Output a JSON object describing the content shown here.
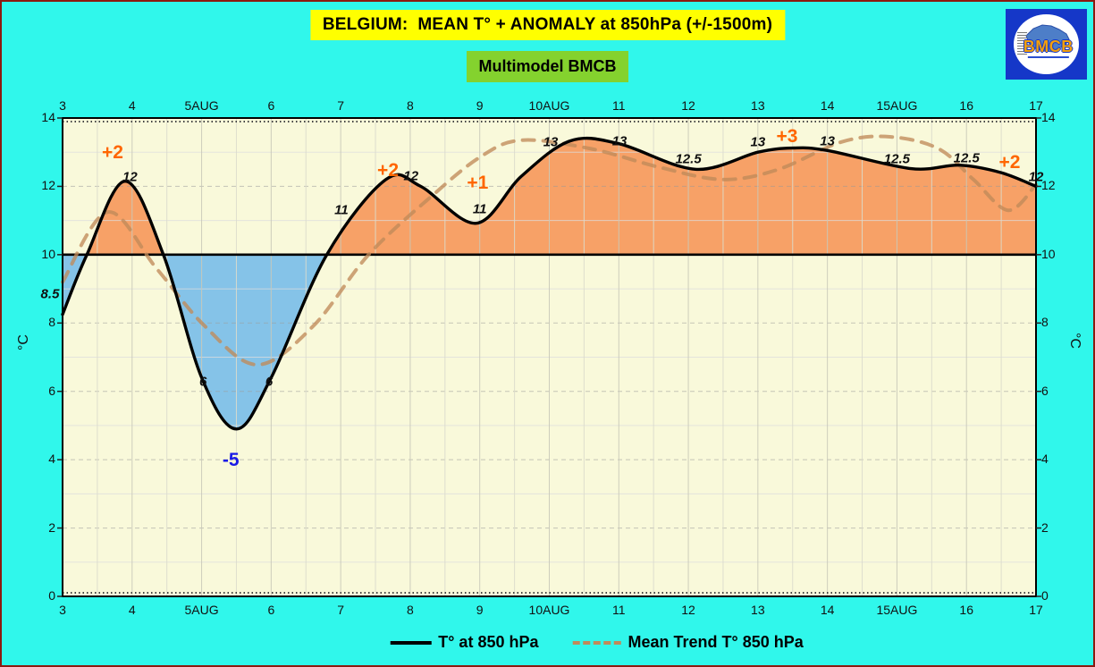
{
  "frame": {
    "title": "BELGIUM:  MEAN T° + ANOMALY at 850hPa (+/-1500m)",
    "subtitle": "Multimodel BMCB"
  },
  "logo": {
    "text": "BMCB"
  },
  "legend": {
    "items": [
      {
        "label": "T° at 850 hPa",
        "style": "solid"
      },
      {
        "label": "Mean Trend T° 850 hPa",
        "style": "dashed"
      }
    ]
  },
  "colors": {
    "background": "#30F7EB",
    "outer_border": "#8B1A10",
    "title_bg": "#FFFF00",
    "subtitle_bg": "#84D22E",
    "plot_bg": "#F9F9DA",
    "warm_fill": "#F7A167",
    "cold_fill": "#85C3E8",
    "temperature_line": "#000000",
    "trend_line": "#C08A5A",
    "baseline": "#000000",
    "anomaly_positive": "#FF6600",
    "anomaly_negative": "#1A1AE6",
    "logo_blue": "#1537C8"
  },
  "chart_data": {
    "type": "line",
    "title": "BELGIUM:  MEAN T° + ANOMALY at 850hPa (+/-1500m)",
    "subtitle": "Multimodel BMCB",
    "ylabel": "°C",
    "xlim": [
      3,
      17
    ],
    "ylim": [
      0,
      14
    ],
    "baseline": 10,
    "grid": true,
    "legend_position": "bottom",
    "x_ticks": [
      {
        "day": 3,
        "label": "3"
      },
      {
        "day": 4,
        "label": "4"
      },
      {
        "day": 5,
        "label": "5AUG"
      },
      {
        "day": 6,
        "label": "6"
      },
      {
        "day": 7,
        "label": "7"
      },
      {
        "day": 8,
        "label": "8"
      },
      {
        "day": 9,
        "label": "9"
      },
      {
        "day": 10,
        "label": "10AUG"
      },
      {
        "day": 11,
        "label": "11"
      },
      {
        "day": 12,
        "label": "12"
      },
      {
        "day": 13,
        "label": "13"
      },
      {
        "day": 14,
        "label": "14"
      },
      {
        "day": 15,
        "label": "15AUG"
      },
      {
        "day": 16,
        "label": "16"
      },
      {
        "day": 17,
        "label": "17"
      }
    ],
    "y_ticks": [
      0,
      2,
      4,
      6,
      8,
      10,
      12,
      14
    ],
    "categories": [
      3,
      4,
      5,
      6,
      7,
      8,
      9,
      10,
      11,
      12,
      13,
      14,
      15,
      16,
      17
    ],
    "series": [
      {
        "name": "T° at 850 hPa",
        "style": "solid",
        "values": [
          8.5,
          12,
          6,
          6,
          11,
          12,
          11,
          13,
          13,
          12.5,
          13,
          13,
          12.5,
          12.5,
          12
        ],
        "trace": [
          [
            3,
            8.25
          ],
          [
            3.35,
            10
          ],
          [
            3.9,
            12.15
          ],
          [
            4.45,
            10
          ],
          [
            5.0,
            6.4
          ],
          [
            5.5,
            4.9
          ],
          [
            6.0,
            6.4
          ],
          [
            6.8,
            10
          ],
          [
            7.65,
            12.2
          ],
          [
            8.15,
            12.0
          ],
          [
            8.95,
            10.92
          ],
          [
            9.6,
            12.3
          ],
          [
            10.3,
            13.33
          ],
          [
            11.0,
            13.25
          ],
          [
            12.1,
            12.5
          ],
          [
            13.0,
            13.0
          ],
          [
            13.5,
            13.12
          ],
          [
            14.0,
            13.05
          ],
          [
            15.2,
            12.52
          ],
          [
            15.9,
            12.62
          ],
          [
            16.5,
            12.4
          ],
          [
            17,
            12.0
          ]
        ]
      },
      {
        "name": "Mean Trend T° 850 hPa",
        "style": "dashed",
        "trace": [
          [
            3,
            9.2
          ],
          [
            3.65,
            11.25
          ],
          [
            4.35,
            9.6
          ],
          [
            5.05,
            7.9
          ],
          [
            5.8,
            6.78
          ],
          [
            6.6,
            7.9
          ],
          [
            7.4,
            10.0
          ],
          [
            8.3,
            11.7
          ],
          [
            9.0,
            12.85
          ],
          [
            9.6,
            13.35
          ],
          [
            10.6,
            13.1
          ],
          [
            11.6,
            12.55
          ],
          [
            12.5,
            12.2
          ],
          [
            13.3,
            12.5
          ],
          [
            14.2,
            13.3
          ],
          [
            14.9,
            13.45
          ],
          [
            15.6,
            13.1
          ],
          [
            16.1,
            12.2
          ],
          [
            16.6,
            11.3
          ],
          [
            17,
            12.05
          ]
        ]
      }
    ],
    "point_labels": [
      {
        "text": "8.5",
        "day": 2.82,
        "value": 8.85
      },
      {
        "text": "12",
        "day": 3.97,
        "value": 12.27
      },
      {
        "text": "6",
        "day": 5.02,
        "value": 6.28
      },
      {
        "text": "6",
        "day": 5.97,
        "value": 6.28
      },
      {
        "text": "11",
        "day": 7.01,
        "value": 11.31
      },
      {
        "text": "12",
        "day": 8.01,
        "value": 12.3
      },
      {
        "text": "11",
        "day": 9.0,
        "value": 11.33
      },
      {
        "text": "13",
        "day": 10.02,
        "value": 13.3
      },
      {
        "text": "13",
        "day": 11.01,
        "value": 13.32
      },
      {
        "text": "12.5",
        "day": 12.0,
        "value": 12.8
      },
      {
        "text": "13",
        "day": 13.0,
        "value": 13.3
      },
      {
        "text": "13",
        "day": 14.0,
        "value": 13.32
      },
      {
        "text": "12.5",
        "day": 15.0,
        "value": 12.8
      },
      {
        "text": "12.5",
        "day": 16.0,
        "value": 12.82
      },
      {
        "text": "12",
        "day": 17.0,
        "value": 12.27
      }
    ],
    "anomaly_labels": [
      {
        "text": "+2",
        "day": 3.72,
        "value": 12.98,
        "kind": "positive"
      },
      {
        "text": "-5",
        "day": 5.42,
        "value": 3.98,
        "kind": "negative"
      },
      {
        "text": "+2",
        "day": 7.68,
        "value": 12.45,
        "kind": "positive"
      },
      {
        "text": "+1",
        "day": 8.97,
        "value": 12.1,
        "kind": "positive"
      },
      {
        "text": "+3",
        "day": 13.42,
        "value": 13.45,
        "kind": "positive"
      },
      {
        "text": "+2",
        "day": 16.62,
        "value": 12.68,
        "kind": "positive"
      }
    ]
  }
}
